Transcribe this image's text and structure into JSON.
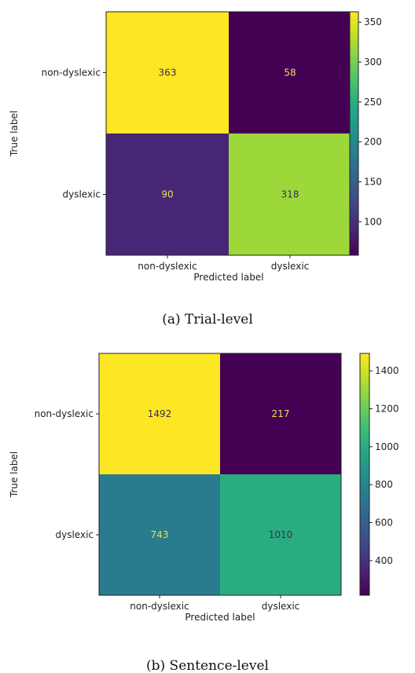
{
  "chart_data": [
    {
      "type": "heatmap",
      "caption": "(a) Trial-level",
      "xlabel": "Predicted label",
      "ylabel": "True label",
      "x_categories": [
        "non-dyslexic",
        "dyslexic"
      ],
      "y_categories": [
        "non-dyslexic",
        "dyslexic"
      ],
      "values": [
        [
          363,
          58
        ],
        [
          90,
          318
        ]
      ],
      "colormap": "viridis",
      "colorbar": {
        "min": 58,
        "max": 363,
        "ticks": [
          100,
          150,
          200,
          250,
          300,
          350
        ]
      }
    },
    {
      "type": "heatmap",
      "caption": "(b) Sentence-level",
      "xlabel": "Predicted label",
      "ylabel": "True label",
      "x_categories": [
        "non-dyslexic",
        "dyslexic"
      ],
      "y_categories": [
        "non-dyslexic",
        "dyslexic"
      ],
      "values": [
        [
          1492,
          217
        ],
        [
          743,
          1010
        ]
      ],
      "colormap": "viridis",
      "colorbar": {
        "min": 217,
        "max": 1492,
        "ticks": [
          400,
          600,
          800,
          1000,
          1200,
          1400
        ]
      }
    }
  ]
}
